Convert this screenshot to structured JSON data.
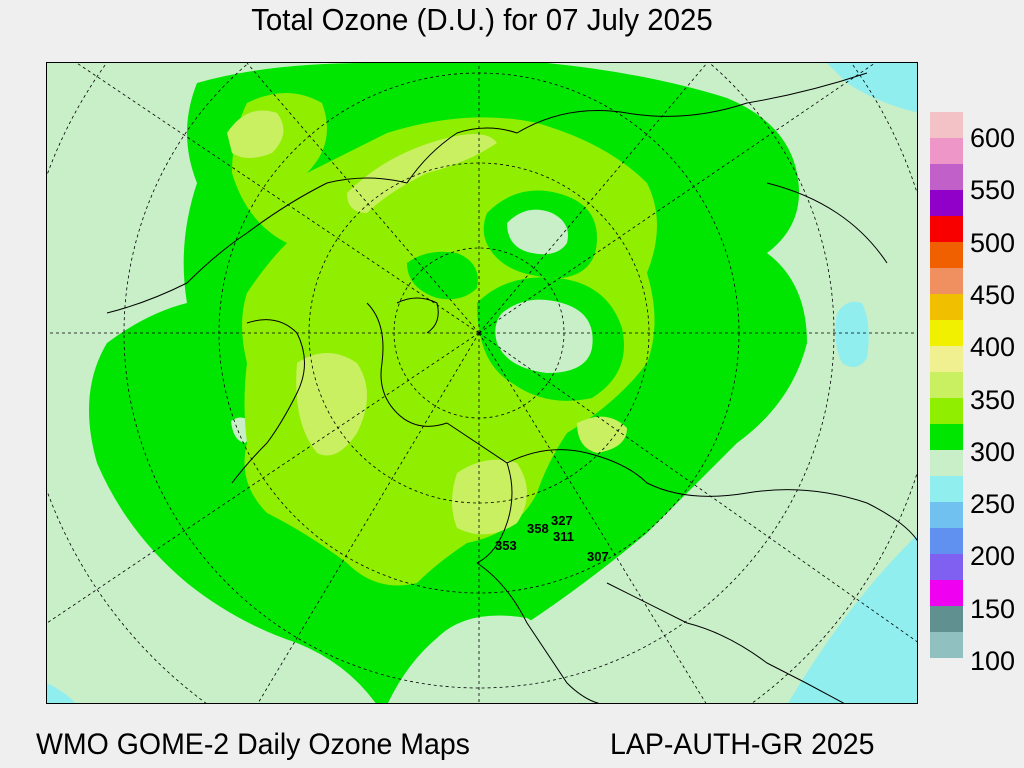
{
  "title": "Total Ozone (D.U.) for 07 July 2025",
  "footer": {
    "left": "WMO GOME-2 Daily Ozone Maps",
    "right": "LAP-AUTH-GR 2025"
  },
  "legend": {
    "unit": "D.U.",
    "labels": [
      "600",
      "550",
      "500",
      "450",
      "400",
      "350",
      "300",
      "250",
      "200",
      "150",
      "100"
    ],
    "colors": [
      "#f2c2c6",
      "#ee96c8",
      "#c060c8",
      "#9000c8",
      "#f80000",
      "#f06000",
      "#f09060",
      "#f0c000",
      "#f0f000",
      "#f0f090",
      "#c8f060",
      "#90ee00",
      "#00e600",
      "#c8efc8",
      "#90eeee",
      "#70c0f0",
      "#6090f0",
      "#8060f0",
      "#f000f0",
      "#609090",
      "#90c0c0"
    ]
  },
  "stations": [
    {
      "label": "353"
    },
    {
      "label": "358"
    },
    {
      "label": "327"
    },
    {
      "label": "311"
    },
    {
      "label": "307"
    }
  ]
}
